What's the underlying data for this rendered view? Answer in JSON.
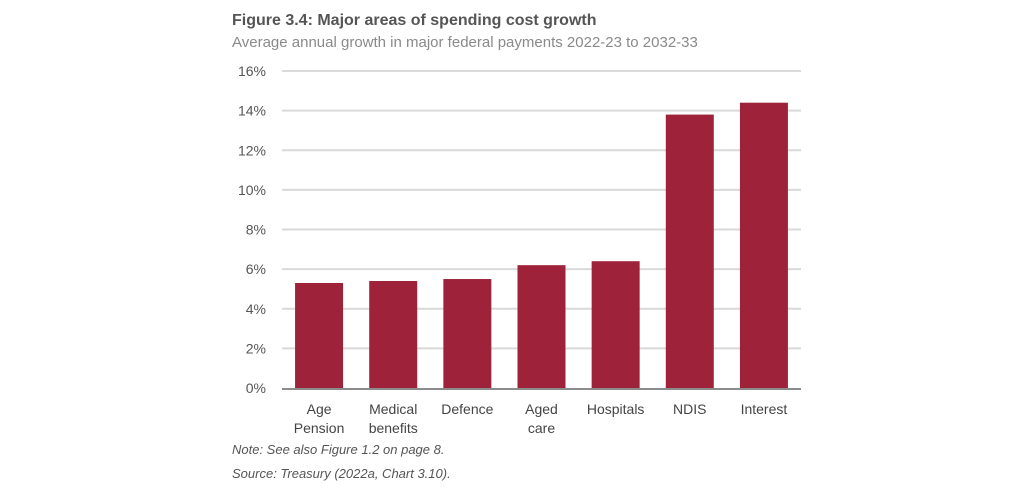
{
  "chart_data": {
    "type": "bar",
    "title": "Figure 3.4: Major areas of spending cost growth",
    "subtitle": "Average annual growth in major federal payments 2022-23 to 2032-33",
    "xlabel": "",
    "ylabel": "",
    "categories": [
      [
        "Age",
        "Pension"
      ],
      [
        "Medical",
        "benefits"
      ],
      [
        "Defence"
      ],
      [
        "Aged",
        "care"
      ],
      [
        "Hospitals"
      ],
      [
        "NDIS"
      ],
      [
        "Interest"
      ]
    ],
    "category_names": [
      "Age Pension",
      "Medical benefits",
      "Defence",
      "Aged care",
      "Hospitals",
      "NDIS",
      "Interest"
    ],
    "values": [
      5.3,
      5.4,
      5.5,
      6.2,
      6.4,
      13.8,
      14.4
    ],
    "unit": "%",
    "ylim": [
      0,
      16
    ],
    "yticks": [
      0,
      2,
      4,
      6,
      8,
      10,
      12,
      14,
      16
    ],
    "ytick_labels": [
      "0%",
      "2%",
      "4%",
      "6%",
      "8%",
      "10%",
      "12%",
      "14%",
      "16%"
    ],
    "grid": true,
    "legend": "none",
    "bar_color": "#9e2239",
    "grid_color": "#d9d9d9",
    "axis_color": "#8c8c8c"
  },
  "notes": {
    "note": "Note: See also Figure 1.2 on page 8.",
    "source": "Source: Treasury (2022a, Chart 3.10)."
  }
}
